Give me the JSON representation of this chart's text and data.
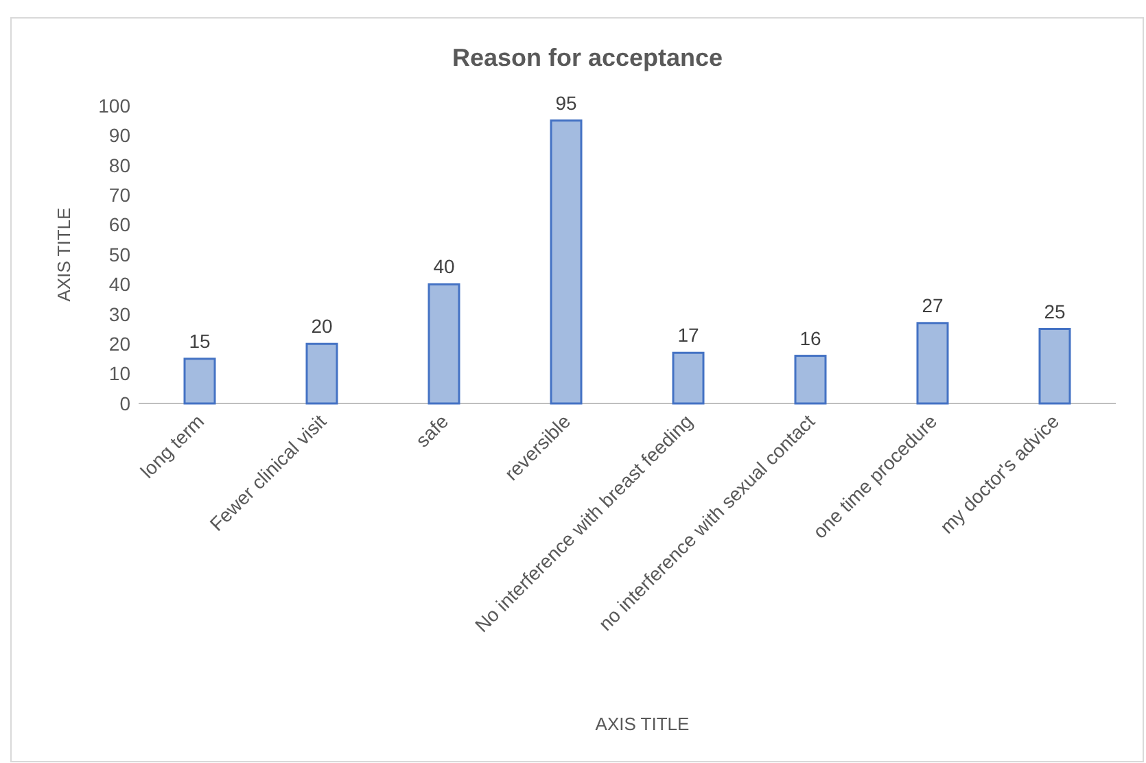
{
  "chart_data": {
    "type": "bar",
    "title": "Reason for acceptance",
    "xlabel": "AXIS TITLE",
    "ylabel": "AXIS TITLE",
    "categories": [
      "long term",
      "Fewer clinical visit",
      "safe",
      "reversible",
      "No interference with breast feeding",
      "no interference with sexual contact",
      "one time procedure",
      "my doctor's advice"
    ],
    "values": [
      15,
      20,
      40,
      95,
      17,
      16,
      27,
      25
    ],
    "color": "#a3bbe0",
    "ylim": [
      0,
      100
    ],
    "yticks": [
      0,
      10,
      20,
      30,
      40,
      50,
      60,
      70,
      80,
      90,
      100
    ],
    "data_labels": true
  }
}
